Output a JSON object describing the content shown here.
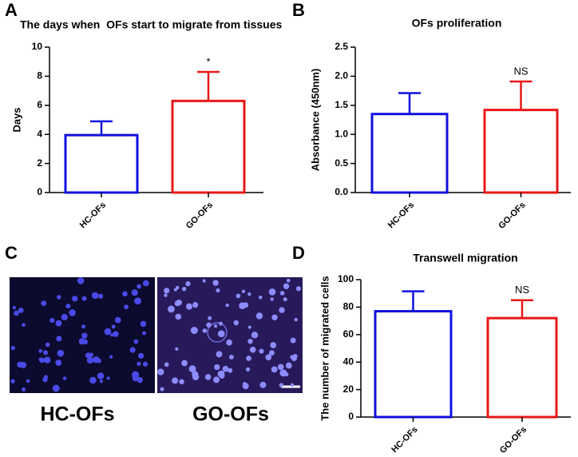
{
  "panel_labels": [
    "A",
    "B",
    "C",
    "D"
  ],
  "images": {
    "labels": [
      "HC-OFs",
      "GO-OFs"
    ]
  },
  "chart_data": [
    {
      "type": "bar",
      "title": "The days when  OFs start to migrate from tissues",
      "ylabel": "Days",
      "categories": [
        "HC-OFs",
        "GO-OFs"
      ],
      "values": [
        3.95,
        6.3
      ],
      "errors": [
        0.95,
        2.0
      ],
      "colors": [
        "#1010e0",
        "#e81818"
      ],
      "value_annotations": [
        null,
        "*"
      ],
      "ylim": [
        0,
        10
      ],
      "yticks": [
        0,
        2,
        4,
        6,
        8,
        10
      ]
    },
    {
      "type": "bar",
      "title": "OFs proliferation",
      "ylabel": "Absorbance (450nm)",
      "categories": [
        "HC-OFs",
        "GO-OFs"
      ],
      "values": [
        1.35,
        1.42
      ],
      "errors": [
        0.36,
        0.49
      ],
      "colors": [
        "#1010e0",
        "#e81818"
      ],
      "value_annotations": [
        null,
        "NS"
      ],
      "ylim": [
        0,
        2.5
      ],
      "yticks": [
        {
          "value": 0,
          "label": "0.0"
        },
        0.5,
        {
          "value": 1,
          "label": "1.0"
        },
        1.5,
        {
          "value": 2,
          "label": "2.0"
        },
        2.5
      ]
    },
    {
      "type": "bar",
      "title": "Transwell migration",
      "ylabel": "The number of migrated cells",
      "categories": [
        "HC-OFs",
        "GO-OFs"
      ],
      "values": [
        77,
        72
      ],
      "errors": [
        14.5,
        13
      ],
      "colors": [
        "#1010e0",
        "#e81818"
      ],
      "value_annotations": [
        null,
        "NS"
      ],
      "ylim": [
        0,
        100
      ],
      "yticks": [
        0,
        20,
        40,
        60,
        80,
        100
      ]
    }
  ]
}
